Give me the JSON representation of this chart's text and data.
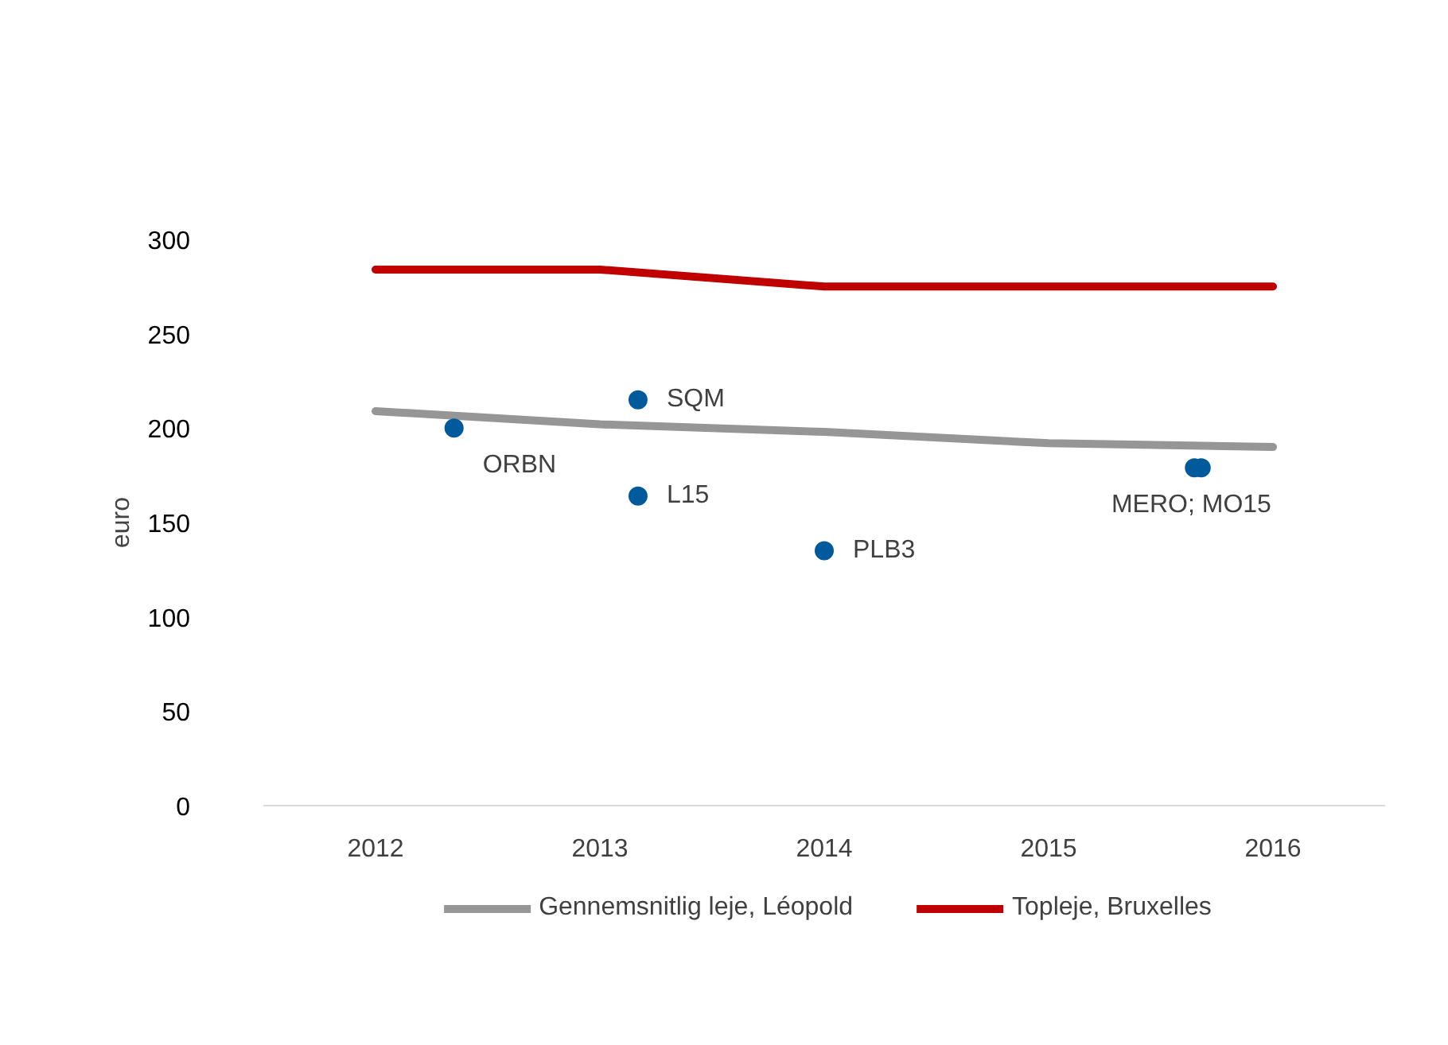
{
  "chart_data": {
    "type": "line",
    "ylabel": "euro",
    "xlim": [
      2011.5,
      2016.5
    ],
    "xticks": [
      2012,
      2013,
      2014,
      2015,
      2016
    ],
    "ylim": [
      0,
      300
    ],
    "yticks": [
      0,
      50,
      100,
      150,
      200,
      250,
      300
    ],
    "grid": false,
    "legend": "bottom",
    "marker": "none",
    "series": [
      {
        "name": "Gennemsnitlig leje, Léopold",
        "color": "#969696",
        "x": [
          2012,
          2013,
          2014,
          2015,
          2016
        ],
        "values": [
          209,
          202,
          198,
          192,
          190
        ]
      },
      {
        "name": "Topleje, Bruxelles",
        "color": "#c00000",
        "x": [
          2012,
          2013,
          2014,
          2015,
          2016
        ],
        "values": [
          284,
          284,
          275,
          275,
          275
        ]
      },
      {
        "type": "scatter",
        "marker": "circle",
        "color": "#005a9c",
        "x": [
          2012.35,
          2013.17,
          2013.17,
          2014.0,
          2015.65,
          2015.68
        ],
        "values": [
          200,
          215,
          164,
          135,
          179,
          179
        ]
      }
    ],
    "annotations": [
      {
        "text": "ORBN",
        "x": 2012.35,
        "y": 200
      },
      {
        "text": "SQM",
        "x": 2013.17,
        "y": 215
      },
      {
        "text": "L15",
        "x": 2013.17,
        "y": 164
      },
      {
        "text": "PLB3",
        "x": 2014.0,
        "y": 135
      },
      {
        "text": "MERO; MO15",
        "x": 2015.67,
        "y": 179
      }
    ]
  }
}
